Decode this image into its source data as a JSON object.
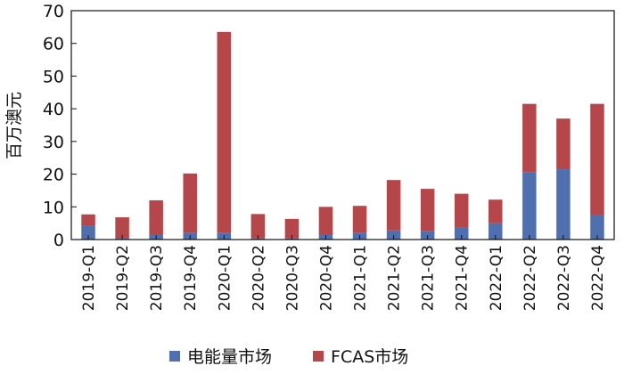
{
  "chart_data": {
    "type": "bar",
    "stacked": true,
    "ylabel": "百万澳元",
    "xlabel": "",
    "ylim": [
      0,
      70
    ],
    "yticks": [
      0,
      10,
      20,
      30,
      40,
      50,
      60,
      70
    ],
    "categories": [
      "2019-Q1",
      "2019-Q2",
      "2019-Q3",
      "2019-Q4",
      "2020-Q1",
      "2020-Q2",
      "2020-Q3",
      "2020-Q4",
      "2021-Q1",
      "2021-Q2",
      "2021-Q3",
      "2021-Q4",
      "2022-Q1",
      "2022-Q2",
      "2022-Q3",
      "2022-Q4"
    ],
    "series": [
      {
        "name": "电能量市场",
        "color": "#4f6fae",
        "values": [
          4.2,
          0.3,
          1.5,
          2.0,
          2.0,
          0.5,
          0.5,
          1.5,
          2.0,
          2.8,
          2.5,
          3.8,
          5.0,
          20.5,
          21.5,
          7.5
        ]
      },
      {
        "name": "FCAS市场",
        "color": "#b5474b",
        "values": [
          3.5,
          6.5,
          10.5,
          18.2,
          61.5,
          7.3,
          5.8,
          8.5,
          8.3,
          15.4,
          13.0,
          10.2,
          7.2,
          21.0,
          15.5,
          34.0
        ]
      }
    ],
    "legend_position": "bottom",
    "grid": false
  }
}
